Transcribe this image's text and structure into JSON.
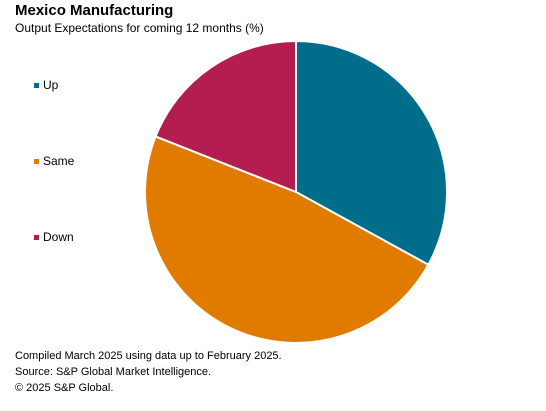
{
  "chart_data": {
    "type": "pie",
    "title": "Mexico Manufacturing",
    "subtitle": "Output Expectations for coming 12 months (%)",
    "categories": [
      "Up",
      "Same",
      "Down"
    ],
    "values": [
      33,
      48,
      19
    ],
    "colors": [
      "#006d8a",
      "#e07b00",
      "#b41d4f"
    ],
    "legend_placement": "left"
  },
  "footer": {
    "line1": "Compiled March 2025 using data up to February 2025.",
    "line2": "Source: S&P Global Market Intelligence.",
    "line3": "© 2025 S&P Global."
  }
}
